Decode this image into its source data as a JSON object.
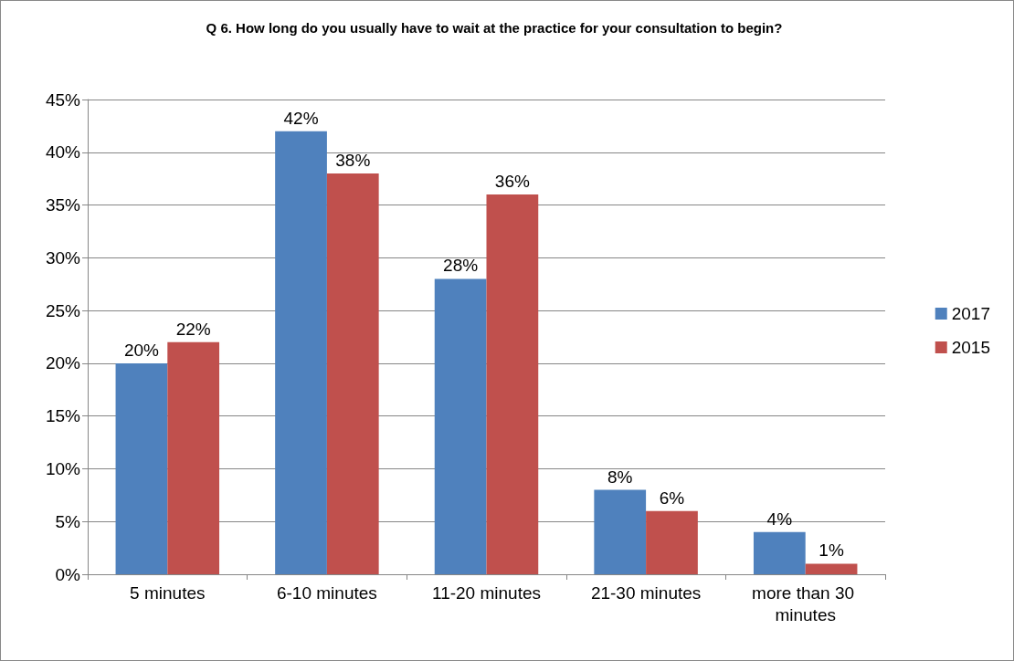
{
  "chart_data": {
    "type": "bar",
    "title": "Q 6. How long do you usually have to wait at the practice for your consultation to begin?",
    "categories": [
      "5 minutes",
      "6-10 minutes",
      "11-20 minutes",
      "21-30 minutes",
      "more than 30 minutes"
    ],
    "series": [
      {
        "name": "2017",
        "color": "#4f81bd",
        "values": [
          20,
          42,
          28,
          8,
          4
        ],
        "value_labels": [
          "20%",
          "42%",
          "28%",
          "8%",
          "4%"
        ]
      },
      {
        "name": "2015",
        "color": "#c0504d",
        "values": [
          22,
          38,
          36,
          6,
          1
        ],
        "value_labels": [
          "22%",
          "38%",
          "36%",
          "6%",
          "1%"
        ]
      }
    ],
    "ylim": [
      0,
      45
    ],
    "yticks": [
      {
        "value": 0,
        "label": "0%"
      },
      {
        "value": 5,
        "label": "5%"
      },
      {
        "value": 10,
        "label": "10%"
      },
      {
        "value": 15,
        "label": "15%"
      },
      {
        "value": 20,
        "label": "20%"
      },
      {
        "value": 25,
        "label": "25%"
      },
      {
        "value": 30,
        "label": "30%"
      },
      {
        "value": 35,
        "label": "35%"
      },
      {
        "value": 40,
        "label": "40%"
      },
      {
        "value": 45,
        "label": "45%"
      }
    ],
    "grid": "y",
    "legend": "right"
  }
}
